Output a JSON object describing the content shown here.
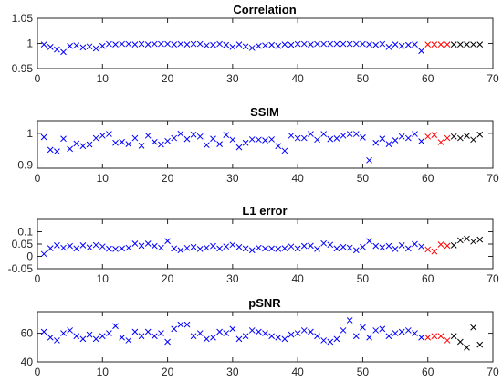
{
  "colors": {
    "group_1": "#0000ff",
    "group_2": "#ff0000",
    "group_3": "#000000",
    "axis": "#262626"
  },
  "marker": "x",
  "chart_data": [
    {
      "type": "scatter",
      "title": "Correlation",
      "xlim": [
        0,
        70
      ],
      "ylim": [
        0.95,
        1.05
      ],
      "xticks": [
        0,
        10,
        20,
        30,
        40,
        50,
        60,
        70
      ],
      "yticks": [
        0.95,
        1,
        1.05
      ],
      "ytick_labels": [
        "0.95",
        "1",
        "1.05"
      ],
      "groups": [
        {
          "color": "group_1",
          "x": [
            1,
            2,
            3,
            4,
            5,
            6,
            7,
            8,
            9,
            10,
            11,
            12,
            13,
            14,
            15,
            16,
            17,
            18,
            19,
            20,
            21,
            22,
            23,
            24,
            25,
            26,
            27,
            28,
            29,
            30,
            31,
            32,
            33,
            34,
            35,
            36,
            37,
            38,
            39,
            40,
            41,
            42,
            43,
            44,
            45,
            46,
            47,
            48,
            49,
            50,
            51,
            52,
            53,
            54,
            55,
            56,
            57,
            58,
            59
          ],
          "y": [
            0.998,
            0.993,
            0.988,
            0.983,
            0.995,
            0.996,
            0.992,
            0.994,
            0.99,
            0.995,
            0.999,
            0.998,
            0.999,
            0.999,
            0.998,
            0.999,
            0.998,
            0.999,
            0.999,
            0.999,
            0.998,
            0.999,
            0.998,
            0.999,
            0.999,
            0.996,
            0.997,
            0.999,
            0.997,
            0.993,
            0.998,
            0.994,
            0.991,
            0.995,
            0.996,
            0.997,
            0.995,
            0.998,
            0.997,
            0.999,
            0.999,
            0.998,
            0.999,
            0.999,
            0.999,
            0.999,
            0.999,
            0.999,
            0.999,
            0.999,
            0.998,
            0.997,
            0.999,
            0.993,
            0.998,
            0.995,
            0.997,
            0.998,
            0.985
          ]
        },
        {
          "color": "group_2",
          "x": [
            60,
            61,
            62,
            63
          ],
          "y": [
            0.998,
            0.998,
            0.998,
            0.998
          ]
        },
        {
          "color": "group_3",
          "x": [
            64,
            65,
            66,
            67,
            68
          ],
          "y": [
            0.998,
            0.998,
            0.998,
            0.998,
            0.998
          ]
        }
      ]
    },
    {
      "type": "scatter",
      "title": "SSIM",
      "xlim": [
        0,
        70
      ],
      "ylim": [
        0.89,
        1.04
      ],
      "xticks": [
        0,
        10,
        20,
        30,
        40,
        50,
        60,
        70
      ],
      "yticks": [
        0.9,
        1
      ],
      "ytick_labels": [
        "0.9",
        "1"
      ],
      "groups": [
        {
          "color": "group_1",
          "x": [
            1,
            2,
            3,
            4,
            5,
            6,
            7,
            8,
            9,
            10,
            11,
            12,
            13,
            14,
            15,
            16,
            17,
            18,
            19,
            20,
            21,
            22,
            23,
            24,
            25,
            26,
            27,
            28,
            29,
            30,
            31,
            32,
            33,
            34,
            35,
            36,
            37,
            38,
            39,
            40,
            41,
            42,
            43,
            44,
            45,
            46,
            47,
            48,
            49,
            50,
            51,
            52,
            53,
            54,
            55,
            56,
            57,
            58,
            59
          ],
          "y": [
            0.988,
            0.948,
            0.943,
            0.983,
            0.951,
            0.968,
            0.96,
            0.965,
            0.985,
            0.993,
            0.998,
            0.97,
            0.973,
            0.966,
            0.985,
            0.961,
            0.993,
            0.973,
            0.965,
            0.976,
            0.985,
            0.999,
            0.982,
            0.996,
            0.99,
            0.963,
            0.983,
            0.966,
            0.995,
            0.98,
            0.956,
            0.97,
            0.981,
            0.98,
            0.978,
            0.981,
            0.96,
            0.945,
            0.993,
            0.985,
            0.985,
            0.998,
            0.98,
            0.998,
            0.982,
            0.984,
            0.993,
            0.998,
            0.998,
            0.987,
            0.915,
            0.97,
            0.983,
            0.966,
            0.978,
            0.99,
            0.985,
            0.998,
            0.975
          ]
        },
        {
          "color": "group_2",
          "x": [
            60,
            61,
            62,
            63
          ],
          "y": [
            0.99,
            0.995,
            0.972,
            0.985
          ]
        },
        {
          "color": "group_3",
          "x": [
            64,
            65,
            66,
            67,
            68
          ],
          "y": [
            0.99,
            0.985,
            0.992,
            0.98,
            0.996
          ]
        }
      ]
    },
    {
      "type": "scatter",
      "title": "L1 error",
      "xlim": [
        0,
        70
      ],
      "ylim": [
        -0.05,
        0.15
      ],
      "xticks": [
        0,
        10,
        20,
        30,
        40,
        50,
        60,
        70
      ],
      "yticks": [
        -0.05,
        0,
        0.05,
        0.1
      ],
      "ytick_labels": [
        "-0.05",
        "0",
        "0.05",
        "0.1"
      ],
      "groups": [
        {
          "color": "group_1",
          "x": [
            1,
            2,
            3,
            4,
            5,
            6,
            7,
            8,
            9,
            10,
            11,
            12,
            13,
            14,
            15,
            16,
            17,
            18,
            19,
            20,
            21,
            22,
            23,
            24,
            25,
            26,
            27,
            28,
            29,
            30,
            31,
            32,
            33,
            34,
            35,
            36,
            37,
            38,
            39,
            40,
            41,
            42,
            43,
            44,
            45,
            46,
            47,
            48,
            49,
            50,
            51,
            52,
            53,
            54,
            55,
            56,
            57,
            58,
            59
          ],
          "y": [
            0.01,
            0.033,
            0.045,
            0.035,
            0.042,
            0.032,
            0.045,
            0.036,
            0.046,
            0.04,
            0.031,
            0.03,
            0.032,
            0.035,
            0.052,
            0.043,
            0.052,
            0.042,
            0.035,
            0.062,
            0.032,
            0.025,
            0.034,
            0.038,
            0.03,
            0.035,
            0.042,
            0.032,
            0.04,
            0.047,
            0.038,
            0.032,
            0.025,
            0.035,
            0.032,
            0.032,
            0.03,
            0.033,
            0.04,
            0.032,
            0.042,
            0.043,
            0.03,
            0.053,
            0.047,
            0.032,
            0.038,
            0.035,
            0.025,
            0.038,
            0.062,
            0.042,
            0.036,
            0.042,
            0.03,
            0.045,
            0.032,
            0.05,
            0.04
          ]
        },
        {
          "color": "group_2",
          "x": [
            60,
            61,
            62,
            63
          ],
          "y": [
            0.028,
            0.02,
            0.048,
            0.043
          ]
        },
        {
          "color": "group_3",
          "x": [
            64,
            65,
            66,
            67,
            68
          ],
          "y": [
            0.045,
            0.065,
            0.072,
            0.06,
            0.068
          ]
        }
      ]
    },
    {
      "type": "scatter",
      "title": "pSNR",
      "xlim": [
        0,
        70
      ],
      "ylim": [
        40,
        75
      ],
      "xticks": [
        0,
        10,
        20,
        30,
        40,
        50,
        60,
        70
      ],
      "yticks": [
        40,
        60
      ],
      "ytick_labels": [
        "40",
        "60"
      ],
      "groups": [
        {
          "color": "group_1",
          "x": [
            1,
            2,
            3,
            4,
            5,
            6,
            7,
            8,
            9,
            10,
            11,
            12,
            13,
            14,
            15,
            16,
            17,
            18,
            19,
            20,
            21,
            22,
            23,
            24,
            25,
            26,
            27,
            28,
            29,
            30,
            31,
            32,
            33,
            34,
            35,
            36,
            37,
            38,
            39,
            40,
            41,
            42,
            43,
            44,
            45,
            46,
            47,
            48,
            49,
            50,
            51,
            52,
            53,
            54,
            55,
            56,
            57,
            58,
            59
          ],
          "y": [
            61,
            57,
            55,
            60,
            62,
            58,
            56,
            59,
            56,
            58,
            60,
            65,
            57,
            55,
            61,
            58,
            61,
            58,
            60,
            54,
            63,
            66,
            66,
            58,
            60,
            56,
            57,
            61,
            60,
            63,
            56,
            58,
            62,
            61,
            60,
            58,
            57,
            56,
            59,
            60,
            62,
            61,
            58,
            55,
            54,
            56,
            62,
            69,
            58,
            64,
            57,
            62,
            63,
            58,
            60,
            61,
            62,
            60,
            57
          ]
        },
        {
          "color": "group_2",
          "x": [
            60,
            61,
            62,
            63
          ],
          "y": [
            57,
            58,
            58,
            55
          ]
        },
        {
          "color": "group_3",
          "x": [
            64,
            65,
            66,
            67,
            68
          ],
          "y": [
            58,
            54,
            50,
            64,
            52
          ]
        }
      ]
    }
  ]
}
